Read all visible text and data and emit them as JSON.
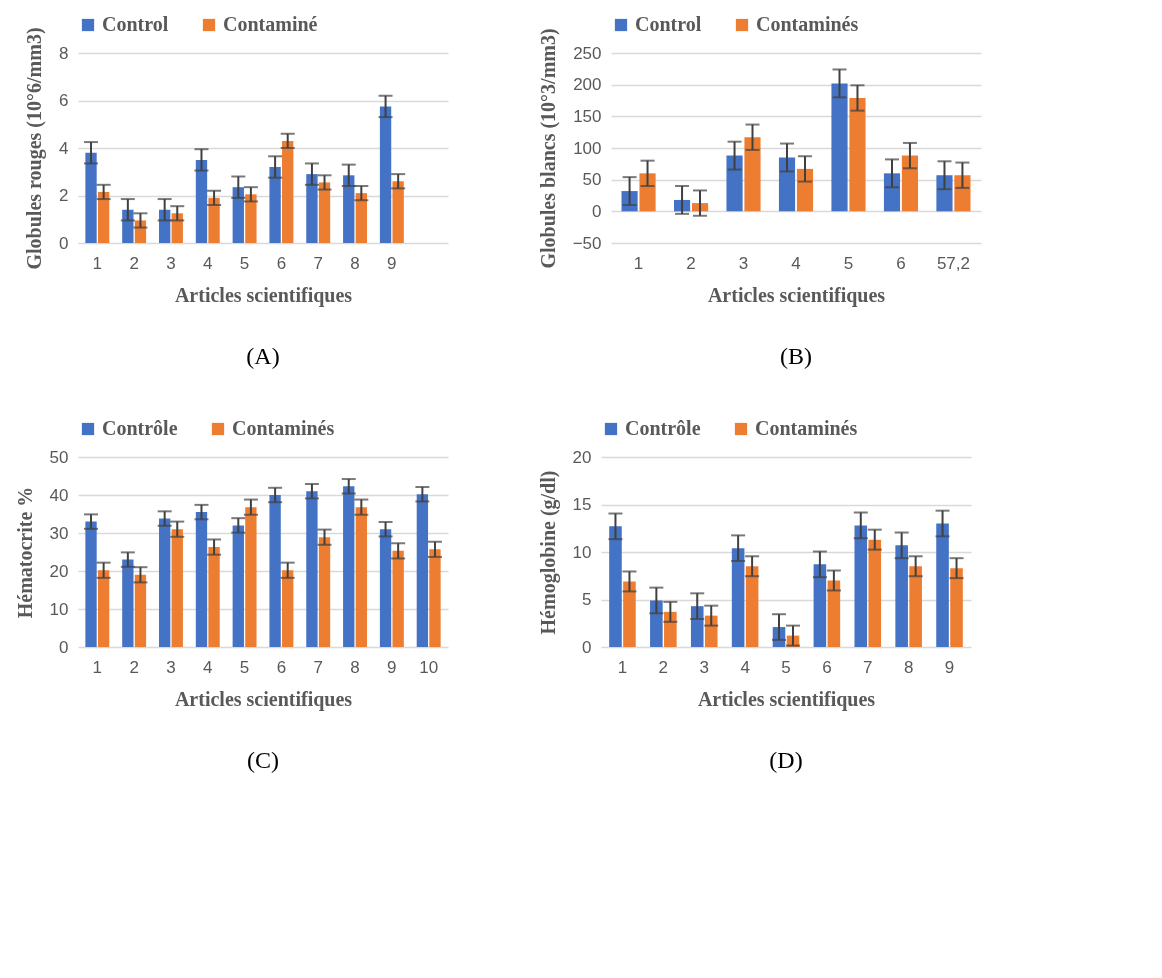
{
  "chart_data": [
    {
      "type": "bar",
      "annotations": [
        "(A)"
      ],
      "xlabel": "Articles scientifiques",
      "ylabel": "Globules rouges (10°6/mm3)",
      "categories": [
        "1",
        "2",
        "3",
        "4",
        "5",
        "6",
        "7",
        "8",
        "9",
        null
      ],
      "ylim": [
        0,
        8
      ],
      "yticks": [
        0,
        2,
        4,
        6,
        8
      ],
      "grid": "y",
      "legend": "top",
      "series": [
        {
          "name": "Control",
          "color": "#4472c4",
          "values": [
            3.8,
            1.4,
            1.4,
            3.5,
            2.35,
            3.2,
            2.9,
            2.85,
            5.75,
            null
          ],
          "errors": [
            0.45,
            0.45,
            0.45,
            0.45,
            0.45,
            0.45,
            0.45,
            0.45,
            0.45,
            null
          ]
        },
        {
          "name": "Contaminé",
          "color": "#ed7d31",
          "values": [
            2.15,
            0.95,
            1.25,
            1.9,
            2.05,
            4.3,
            2.55,
            2.1,
            2.6,
            null
          ],
          "errors": [
            0.3,
            0.3,
            0.3,
            0.3,
            0.3,
            0.3,
            0.3,
            0.3,
            0.3,
            null
          ]
        }
      ]
    },
    {
      "type": "bar",
      "annotations": [
        "(B)"
      ],
      "xlabel": "Articles scientifiques",
      "ylabel": "Globules blancs (10°3/mm3)",
      "categories": [
        "1",
        "2",
        "3",
        "4",
        "5",
        "6",
        "57,2"
      ],
      "ylim": [
        -50,
        250
      ],
      "yticks": [
        -50,
        0,
        50,
        100,
        150,
        200,
        250
      ],
      "grid": "y",
      "legend": "top",
      "series": [
        {
          "name": "Control",
          "color": "#4472c4",
          "values": [
            32,
            18,
            88,
            85,
            202,
            60,
            57
          ],
          "errors": [
            22,
            22,
            22,
            22,
            22,
            22,
            22
          ]
        },
        {
          "name": "Contaminés",
          "color": "#ed7d31",
          "values": [
            60,
            13,
            117,
            67,
            179,
            88,
            57
          ],
          "errors": [
            20,
            20,
            20,
            20,
            20,
            20,
            20
          ]
        }
      ]
    },
    {
      "type": "bar",
      "annotations": [
        "(C)"
      ],
      "xlabel": "Articles scientifiques",
      "ylabel": "Hématocrite %",
      "categories": [
        "1",
        "2",
        "3",
        "4",
        "5",
        "6",
        "7",
        "8",
        "9",
        "10"
      ],
      "ylim": [
        0,
        50
      ],
      "yticks": [
        0,
        10,
        20,
        30,
        40,
        50
      ],
      "grid": "y",
      "legend": "top",
      "series": [
        {
          "name": "Contrôle",
          "color": "#4472c4",
          "values": [
            33,
            23,
            33.8,
            35.5,
            32,
            40,
            41,
            42.3,
            31,
            40.2
          ],
          "errors": [
            1.9,
            1.9,
            1.9,
            1.9,
            1.9,
            1.9,
            1.9,
            1.9,
            1.9,
            1.9
          ]
        },
        {
          "name": "Contaminés",
          "color": "#ed7d31",
          "values": [
            20.2,
            19,
            31,
            26.3,
            36.8,
            20.2,
            28.9,
            36.8,
            25.3,
            25.7
          ],
          "errors": [
            2,
            2,
            2,
            2,
            2,
            2,
            2,
            2,
            2,
            2
          ]
        }
      ]
    },
    {
      "type": "bar",
      "annotations": [
        "(D)"
      ],
      "xlabel": "Articles scientifiques",
      "ylabel": "Hémoglobine (g/dl)",
      "categories": [
        "1",
        "2",
        "3",
        "4",
        "5",
        "6",
        "7",
        "8",
        "9"
      ],
      "ylim": [
        0,
        20
      ],
      "yticks": [
        0,
        5,
        10,
        15,
        20
      ],
      "grid": "y",
      "legend": "top",
      "series": [
        {
          "name": "Contrôle",
          "color": "#4472c4",
          "values": [
            12.7,
            4.9,
            4.3,
            10.4,
            2.1,
            8.7,
            12.8,
            10.7,
            13.0
          ],
          "errors": [
            1.35,
            1.35,
            1.35,
            1.35,
            1.35,
            1.35,
            1.35,
            1.35,
            1.35
          ]
        },
        {
          "name": "Contaminés",
          "color": "#ed7d31",
          "values": [
            6.9,
            3.7,
            3.3,
            8.5,
            1.2,
            7.0,
            11.3,
            8.5,
            8.3
          ],
          "errors": [
            1.05,
            1.05,
            1.05,
            1.05,
            1.05,
            1.05,
            1.05,
            1.05,
            1.05
          ]
        }
      ]
    }
  ]
}
